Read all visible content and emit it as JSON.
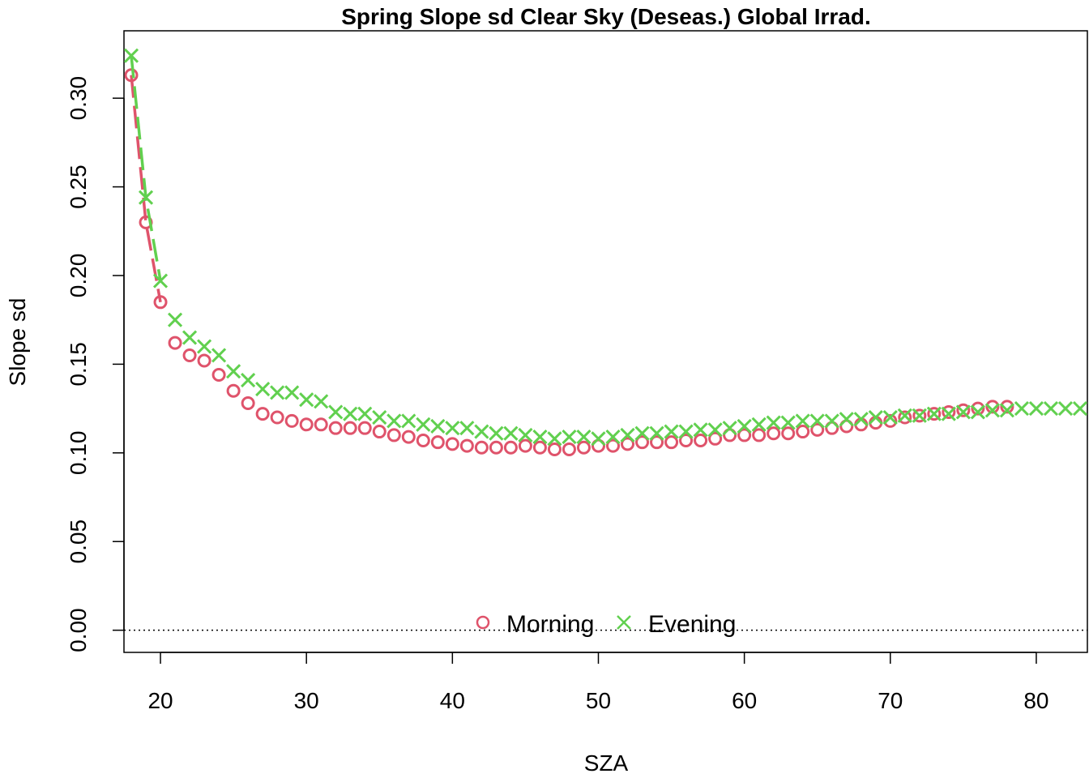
{
  "chart_data": {
    "type": "scatter",
    "title": "Spring Slope sd Clear Sky (Deseas.) Global Irrad.",
    "xlabel": "SZA",
    "ylabel": "Slope sd",
    "xlim": [
      17.5,
      83.5
    ],
    "ylim": [
      -0.0125,
      0.338
    ],
    "xticks": [
      20,
      30,
      40,
      50,
      60,
      70,
      80
    ],
    "yticks": [
      0.0,
      0.05,
      0.1,
      0.15,
      0.2,
      0.25,
      0.3
    ],
    "ytick_labels": [
      "0.00",
      "0.05",
      "0.10",
      "0.15",
      "0.20",
      "0.25",
      "0.30"
    ],
    "reference_line": {
      "y": 0,
      "style": "dotted"
    },
    "legend": {
      "placement": "bottom-center",
      "horizontal": true
    },
    "grid": false,
    "series": [
      {
        "name": "Morning",
        "marker": "circle",
        "color": "#DF536B",
        "line_segment_x": [
          18,
          20.5
        ],
        "x": [
          18,
          19,
          20,
          21,
          22,
          23,
          24,
          25,
          26,
          27,
          28,
          29,
          30,
          31,
          32,
          33,
          34,
          35,
          36,
          37,
          38,
          39,
          40,
          41,
          42,
          43,
          44,
          45,
          46,
          47,
          48,
          49,
          50,
          51,
          52,
          53,
          54,
          55,
          56,
          57,
          58,
          59,
          60,
          61,
          62,
          63,
          64,
          65,
          66,
          67,
          68,
          69,
          70,
          71,
          72,
          73,
          74,
          75,
          76,
          77,
          78
        ],
        "y": [
          0.313,
          0.23,
          0.185,
          0.162,
          0.155,
          0.152,
          0.144,
          0.135,
          0.128,
          0.122,
          0.12,
          0.118,
          0.116,
          0.116,
          0.114,
          0.114,
          0.114,
          0.112,
          0.11,
          0.109,
          0.107,
          0.106,
          0.105,
          0.104,
          0.103,
          0.103,
          0.103,
          0.104,
          0.103,
          0.102,
          0.102,
          0.103,
          0.104,
          0.104,
          0.105,
          0.106,
          0.106,
          0.106,
          0.107,
          0.107,
          0.108,
          0.11,
          0.11,
          0.11,
          0.111,
          0.111,
          0.112,
          0.113,
          0.114,
          0.115,
          0.116,
          0.117,
          0.118,
          0.12,
          0.121,
          0.122,
          0.123,
          0.124,
          0.125,
          0.126,
          0.126
        ]
      },
      {
        "name": "Evening",
        "marker": "cross",
        "color": "#61D04F",
        "line_segment_x": [
          18,
          20
        ],
        "x": [
          18,
          19,
          20,
          21,
          22,
          23,
          24,
          25,
          26,
          27,
          28,
          29,
          30,
          31,
          32,
          33,
          34,
          35,
          36,
          37,
          38,
          39,
          40,
          41,
          42,
          43,
          44,
          45,
          46,
          47,
          48,
          49,
          50,
          51,
          52,
          53,
          54,
          55,
          56,
          57,
          58,
          59,
          60,
          61,
          62,
          63,
          64,
          65,
          66,
          67,
          68,
          69,
          70,
          71,
          72,
          73,
          74,
          75,
          76,
          77,
          78,
          79,
          80,
          81,
          82,
          83
        ],
        "y": [
          0.324,
          0.244,
          0.197,
          0.175,
          0.165,
          0.16,
          0.155,
          0.146,
          0.141,
          0.136,
          0.134,
          0.134,
          0.13,
          0.129,
          0.123,
          0.122,
          0.122,
          0.12,
          0.118,
          0.118,
          0.116,
          0.115,
          0.114,
          0.114,
          0.112,
          0.111,
          0.111,
          0.11,
          0.109,
          0.108,
          0.109,
          0.109,
          0.108,
          0.109,
          0.11,
          0.111,
          0.111,
          0.112,
          0.112,
          0.113,
          0.113,
          0.114,
          0.115,
          0.116,
          0.117,
          0.117,
          0.118,
          0.118,
          0.118,
          0.119,
          0.119,
          0.12,
          0.12,
          0.121,
          0.121,
          0.122,
          0.122,
          0.123,
          0.123,
          0.124,
          0.124,
          0.125,
          0.125,
          0.125,
          0.125,
          0.125
        ]
      }
    ]
  }
}
